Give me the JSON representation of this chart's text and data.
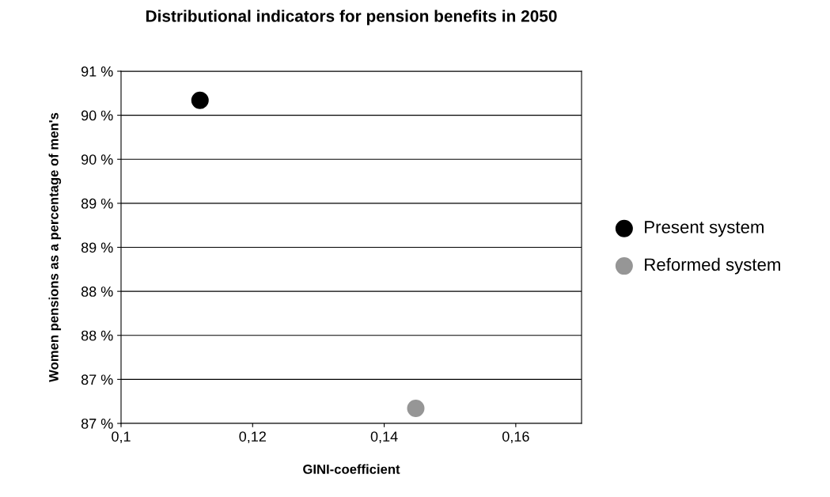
{
  "chart_data": {
    "type": "scatter",
    "title": "Distributional indicators for pension benefits in 2050",
    "xlabel": "GINI-coefficient",
    "ylabel": "Women pensions as a percentage of men's",
    "series": [
      {
        "name": "Present system",
        "color": "#000000",
        "x": [
          0.112
        ],
        "values": [
          90.17
        ]
      },
      {
        "name": "Reformed system",
        "color": "#969696",
        "x": [
          0.1448
        ],
        "values": [
          86.67
        ]
      }
    ],
    "xlim": [
      0.1,
      0.17
    ],
    "xticks": [
      {
        "value": 0.1,
        "label": "0,1"
      },
      {
        "value": 0.12,
        "label": "0,12"
      },
      {
        "value": 0.14,
        "label": "0,14"
      },
      {
        "value": 0.16,
        "label": "0,16"
      }
    ],
    "ylim": [
      86.5,
      90.5
    ],
    "yticks": [
      {
        "value": 86.5,
        "label": "87 %"
      },
      {
        "value": 87,
        "label": "87 %"
      },
      {
        "value": 87.5,
        "label": "88 %"
      },
      {
        "value": 88,
        "label": "88 %"
      },
      {
        "value": 88.5,
        "label": "89 %"
      },
      {
        "value": 89,
        "label": "89 %"
      },
      {
        "value": 89.5,
        "label": "90 %"
      },
      {
        "value": 90,
        "label": "90 %"
      },
      {
        "value": 90.5,
        "label": "91 %"
      }
    ],
    "grid": "y",
    "legend": "right",
    "marker": "circle"
  }
}
